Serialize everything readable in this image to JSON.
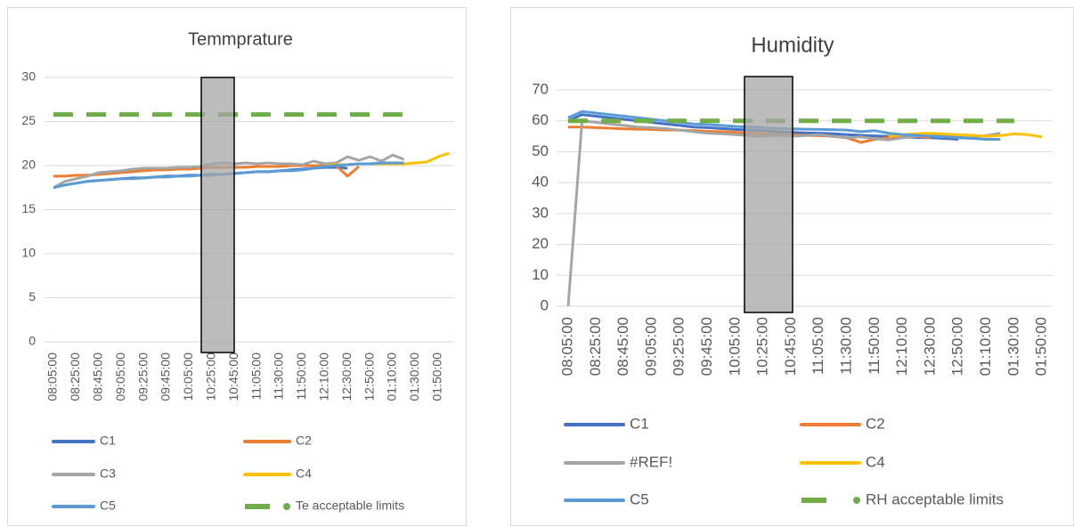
{
  "chart_data": [
    {
      "type": "line",
      "title": "Temmprature",
      "categories": [
        "08:05:00",
        null,
        "08:25:00",
        null,
        "08:45:00",
        null,
        "09:05:00",
        null,
        "09:25:00",
        null,
        "09:45:00",
        null,
        "10:05:00",
        null,
        "10:25:00",
        null,
        "10:45:00",
        null,
        "11:05:00",
        null,
        "11:30:00",
        null,
        "11:50:00",
        null,
        "12:10:00",
        null,
        "12:30:00",
        null,
        "12:50:00",
        null,
        "01:10:00",
        null,
        "01:30:00",
        null,
        "01:50:00",
        null
      ],
      "ylim": [
        0,
        30
      ],
      "yticks": [
        0,
        5,
        10,
        15,
        20,
        25,
        30
      ],
      "grid": true,
      "series": [
        {
          "name": "C1",
          "color": "#4472c4",
          "values": [
            17.5,
            17.8,
            18.0,
            18.2,
            18.3,
            18.4,
            18.5,
            18.6,
            18.6,
            18.7,
            18.8,
            18.8,
            18.9,
            18.9,
            19.0,
            19.0,
            19.1,
            19.2,
            19.3,
            19.3,
            19.4,
            19.5,
            19.6,
            19.7,
            19.8,
            19.8,
            19.7,
            null,
            null,
            null,
            null,
            null,
            null,
            null,
            null,
            null
          ]
        },
        {
          "name": "C2",
          "color": "#ed7d31",
          "values": [
            18.8,
            18.8,
            18.9,
            18.9,
            19.0,
            19.1,
            19.2,
            19.3,
            19.4,
            19.5,
            19.5,
            19.6,
            19.6,
            19.7,
            19.8,
            19.8,
            19.8,
            19.8,
            19.9,
            19.9,
            19.9,
            20.0,
            20.0,
            20.0,
            20.0,
            20.0,
            18.8,
            19.9,
            null,
            null,
            null,
            null,
            null,
            null,
            null,
            null
          ]
        },
        {
          "name": "C3",
          "color": "#a5a5a5",
          "values": [
            17.5,
            18.2,
            18.5,
            18.8,
            19.2,
            19.3,
            19.4,
            19.6,
            19.7,
            19.7,
            19.7,
            19.8,
            19.8,
            19.9,
            20.2,
            20.3,
            20.2,
            20.3,
            20.2,
            20.3,
            20.2,
            20.2,
            20.1,
            20.5,
            20.2,
            20.3,
            21.0,
            20.6,
            21.0,
            20.5,
            21.2,
            20.7,
            null,
            null,
            null,
            null
          ]
        },
        {
          "name": "C4",
          "color": "#ffc000",
          "values": [
            null,
            null,
            null,
            null,
            null,
            null,
            null,
            null,
            null,
            null,
            null,
            null,
            null,
            null,
            null,
            null,
            null,
            null,
            null,
            null,
            null,
            null,
            null,
            null,
            20.0,
            20.1,
            20.1,
            20.2,
            20.2,
            20.2,
            20.2,
            20.2,
            20.3,
            20.4,
            21.0,
            21.4
          ]
        },
        {
          "name": "C5",
          "color": "#5b9bd5",
          "values": [
            17.5,
            17.8,
            18.0,
            18.2,
            18.3,
            18.4,
            18.5,
            18.5,
            18.6,
            18.7,
            18.7,
            18.8,
            18.8,
            18.9,
            18.9,
            19.0,
            19.1,
            19.2,
            19.3,
            19.3,
            19.4,
            19.4,
            19.5,
            19.7,
            19.9,
            20.0,
            20.1,
            20.2,
            20.2,
            20.3,
            20.3,
            20.3,
            null,
            null,
            null,
            null
          ]
        },
        {
          "name": "Te acceptable limits",
          "color": "#70ad47",
          "dashed": true,
          "values": [
            25.8,
            25.8,
            25.8,
            25.8,
            25.8,
            25.8,
            25.8,
            25.8,
            25.8,
            25.8,
            25.8,
            25.8,
            25.8,
            25.8,
            25.8,
            25.8,
            25.8,
            25.8,
            25.8,
            25.8,
            25.8,
            25.8,
            25.8,
            25.8,
            25.8,
            25.8,
            25.8,
            25.8,
            25.8,
            25.8,
            25.8,
            25.8,
            25.8,
            null,
            null,
            null
          ]
        }
      ]
    },
    {
      "type": "line",
      "title": "Humidity",
      "categories": [
        "08:05:00",
        null,
        "08:25:00",
        null,
        "08:45:00",
        null,
        "09:05:00",
        null,
        "09:25:00",
        null,
        "09:45:00",
        null,
        "10:05:00",
        null,
        "10:25:00",
        null,
        "10:45:00",
        null,
        "11:05:00",
        null,
        "11:30:00",
        null,
        "11:50:00",
        null,
        "12:10:00",
        null,
        "12:30:00",
        null,
        "12:50:00",
        null,
        "01:10:00",
        null,
        "01:30:00",
        null,
        "01:50:00"
      ],
      "ylim": [
        0,
        70
      ],
      "yticks": [
        0,
        10,
        20,
        30,
        40,
        50,
        60,
        70
      ],
      "grid": true,
      "series": [
        {
          "name": "C1",
          "color": "#4472c4",
          "values": [
            60,
            62,
            61.5,
            61,
            60.5,
            60,
            59.5,
            59,
            58.5,
            58,
            57.8,
            57.5,
            57.2,
            57,
            56.8,
            56.5,
            56.3,
            56.1,
            56,
            55.8,
            55.5,
            55.3,
            55.1,
            55,
            54.8,
            54.6,
            54.5,
            54.3,
            54,
            null,
            null,
            null,
            null,
            null,
            null
          ]
        },
        {
          "name": "C2",
          "color": "#ed7d31",
          "values": [
            58,
            58,
            57.8,
            57.6,
            57.4,
            57.3,
            57.2,
            57,
            57,
            56.8,
            56.6,
            56.5,
            56.3,
            56,
            55.8,
            55.6,
            55.5,
            55.3,
            55.2,
            55,
            54.5,
            53,
            54,
            54.5,
            54.8,
            55,
            54.5,
            null,
            null,
            null,
            null,
            null,
            null,
            null,
            null
          ]
        },
        {
          "name": "#REF!",
          "color": "#a5a5a5",
          "values": [
            0,
            60,
            59.5,
            59,
            58.5,
            58,
            57.8,
            57.5,
            57,
            56.5,
            56,
            55.8,
            55.5,
            55.2,
            55,
            55.3,
            55,
            55.2,
            55.5,
            55,
            54.5,
            54.8,
            54.2,
            53.8,
            54.5,
            55,
            55.5,
            55,
            55.3,
            54.8,
            55.2,
            56,
            null,
            null,
            null
          ]
        },
        {
          "name": "C4",
          "color": "#ffc000",
          "values": [
            null,
            null,
            null,
            null,
            null,
            null,
            null,
            null,
            null,
            null,
            null,
            null,
            null,
            null,
            null,
            null,
            null,
            null,
            null,
            null,
            null,
            null,
            null,
            55,
            55.5,
            55.8,
            56,
            55.7,
            55.5,
            55.3,
            55,
            55.2,
            55.8,
            55.5,
            54.8
          ]
        },
        {
          "name": "C5",
          "color": "#5b9bd5",
          "values": [
            61,
            63,
            62.5,
            62,
            61.5,
            61,
            60.5,
            60,
            59.5,
            59,
            58.8,
            58.5,
            58.2,
            58,
            57.8,
            57.5,
            57.4,
            57.3,
            57.2,
            57.1,
            57,
            56.5,
            56.8,
            56,
            55.5,
            55.3,
            55,
            54.8,
            54.5,
            54.3,
            54,
            54,
            null,
            null,
            null
          ]
        },
        {
          "name": "RH acceptable limits",
          "color": "#70ad47",
          "dashed": true,
          "values": [
            60,
            60,
            60,
            60,
            60,
            60,
            60,
            60,
            60,
            60,
            60,
            60,
            60,
            60,
            60,
            60,
            60,
            60,
            60,
            60,
            60,
            60,
            60,
            60,
            60,
            60,
            60,
            60,
            60,
            60,
            60,
            60,
            60,
            null,
            null
          ]
        }
      ]
    }
  ]
}
